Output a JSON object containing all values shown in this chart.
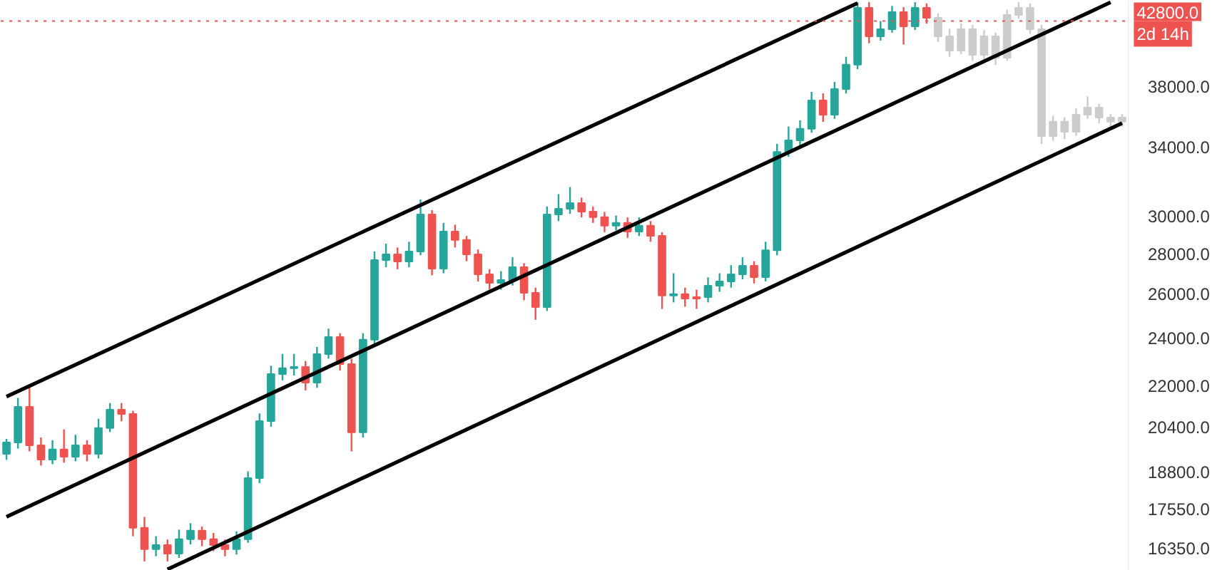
{
  "chart_data": {
    "type": "candlestick",
    "log": true,
    "grid": false,
    "tick_labels": "y",
    "ylim": [
      15680,
      44420
    ],
    "yticks": [
      {
        "value": 16350,
        "label": "16350.0"
      },
      {
        "value": 17550,
        "label": "17550.0"
      },
      {
        "value": 18800,
        "label": "18800.0"
      },
      {
        "value": 20400,
        "label": "20400.0"
      },
      {
        "value": 22000,
        "label": "22000.0"
      },
      {
        "value": 24000,
        "label": "24000.0"
      },
      {
        "value": 26000,
        "label": "26000.0"
      },
      {
        "value": 28000,
        "label": "28000.0"
      },
      {
        "value": 30000,
        "label": "30000.0"
      },
      {
        "value": 34000,
        "label": "34000.0"
      },
      {
        "value": 38000,
        "label": "38000.0"
      }
    ],
    "ref_lines": [
      {
        "axis": "y",
        "value": 42800,
        "label": "42800.0",
        "color": "#ef5350",
        "line_style": "dotted"
      }
    ],
    "annotations": [
      "2d 14h"
    ],
    "categories": [
      null,
      null,
      null,
      null,
      null,
      null,
      null,
      null,
      null,
      null,
      null,
      null,
      null,
      null,
      null,
      null,
      null,
      null,
      null,
      null,
      null,
      null,
      null,
      null,
      null,
      null,
      null,
      null,
      null,
      null,
      null,
      null,
      null,
      null,
      null,
      null,
      null,
      null,
      null,
      null,
      null,
      null,
      null,
      null,
      null,
      null,
      null,
      null,
      null,
      null,
      null,
      null,
      null,
      null,
      null,
      null,
      null,
      null,
      null,
      null,
      null,
      null,
      null,
      null,
      null,
      null,
      null,
      null,
      null,
      null,
      null,
      null,
      null,
      null,
      null,
      null,
      null,
      null,
      null,
      null,
      null,
      null,
      null,
      null,
      null,
      null,
      null,
      null,
      null,
      null,
      null,
      null,
      null,
      null,
      null,
      null,
      null,
      null
    ],
    "ohlc": [
      [
        19410,
        19950,
        19200,
        19820
      ],
      [
        19820,
        21500,
        19600,
        21150
      ],
      [
        21150,
        22000,
        19500,
        19720
      ],
      [
        19720,
        20000,
        19000,
        19210
      ],
      [
        19210,
        19900,
        19050,
        19570
      ],
      [
        19570,
        20300,
        19100,
        19310
      ],
      [
        19310,
        20100,
        19150,
        19720
      ],
      [
        19720,
        19900,
        19150,
        19410
      ],
      [
        19410,
        20700,
        19250,
        20350
      ],
      [
        20350,
        21300,
        20200,
        21040
      ],
      [
        21040,
        21300,
        20600,
        20880
      ],
      [
        20880,
        21000,
        16700,
        16960
      ],
      [
        16960,
        17300,
        15950,
        16310
      ],
      [
        16310,
        16700,
        16100,
        16430
      ],
      [
        16430,
        16600,
        15950,
        16180
      ],
      [
        16180,
        16900,
        16050,
        16610
      ],
      [
        16610,
        17100,
        16450,
        16870
      ],
      [
        16870,
        17000,
        16400,
        16610
      ],
      [
        16610,
        16800,
        16250,
        16430
      ],
      [
        16430,
        16600,
        16100,
        16310
      ],
      [
        16310,
        16850,
        16150,
        16610
      ],
      [
        16610,
        18800,
        16500,
        18570
      ],
      [
        18570,
        20900,
        18400,
        20610
      ],
      [
        20610,
        22800,
        20400,
        22460
      ],
      [
        22460,
        23300,
        22200,
        22700
      ],
      [
        22700,
        23300,
        22400,
        22750
      ],
      [
        22750,
        23000,
        21800,
        22110
      ],
      [
        22110,
        23600,
        21900,
        23290
      ],
      [
        23290,
        24400,
        23100,
        24030
      ],
      [
        24030,
        24200,
        22600,
        22870
      ],
      [
        22870,
        23100,
        19500,
        20190
      ],
      [
        20190,
        24200,
        20000,
        23910
      ],
      [
        23910,
        28100,
        23700,
        27660
      ],
      [
        27660,
        28500,
        27300,
        27950
      ],
      [
        27950,
        28300,
        27200,
        27590
      ],
      [
        27590,
        28600,
        27300,
        28090
      ],
      [
        28090,
        30900,
        27900,
        30060
      ],
      [
        30060,
        30300,
        26900,
        27230
      ],
      [
        27230,
        29600,
        27000,
        29140
      ],
      [
        29140,
        29500,
        28300,
        28690
      ],
      [
        28690,
        28900,
        27600,
        27950
      ],
      [
        27950,
        28200,
        26600,
        26950
      ],
      [
        26950,
        27200,
        26200,
        26530
      ],
      [
        26530,
        27100,
        26200,
        26670
      ],
      [
        26670,
        27800,
        26400,
        27300
      ],
      [
        27300,
        27500,
        25700,
        26050
      ],
      [
        26050,
        26300,
        24800,
        25380
      ],
      [
        25380,
        30500,
        25200,
        30060
      ],
      [
        30060,
        31200,
        29700,
        30370
      ],
      [
        30370,
        31600,
        30100,
        30690
      ],
      [
        30690,
        31000,
        29900,
        30220
      ],
      [
        30220,
        30500,
        29600,
        29910
      ],
      [
        29910,
        30200,
        29100,
        29450
      ],
      [
        29450,
        30000,
        29200,
        29600
      ],
      [
        29600,
        29900,
        28800,
        29140
      ],
      [
        29140,
        29900,
        28900,
        29450
      ],
      [
        29450,
        29700,
        28600,
        28910
      ],
      [
        28910,
        29100,
        25300,
        25920
      ],
      [
        25920,
        27000,
        25600,
        25990
      ],
      [
        25990,
        26300,
        25400,
        25780
      ],
      [
        25780,
        26200,
        25300,
        25850
      ],
      [
        25850,
        26800,
        25600,
        26390
      ],
      [
        26390,
        27000,
        26100,
        26600
      ],
      [
        26600,
        27400,
        26300,
        26950
      ],
      [
        26950,
        27800,
        26700,
        27370
      ],
      [
        27370,
        27600,
        26500,
        26810
      ],
      [
        26810,
        28600,
        26600,
        28160
      ],
      [
        28160,
        34200,
        27900,
        33700
      ],
      [
        33700,
        35300,
        33400,
        34420
      ],
      [
        34420,
        35700,
        34100,
        35150
      ],
      [
        35150,
        37600,
        34900,
        37020
      ],
      [
        37020,
        37500,
        35600,
        36070
      ],
      [
        36070,
        38300,
        35800,
        37800
      ],
      [
        37800,
        40100,
        37500,
        39520
      ],
      [
        39520,
        44300,
        39200,
        43850
      ],
      [
        43850,
        44300,
        41100,
        41620
      ],
      [
        41620,
        42800,
        41300,
        42170
      ],
      [
        42170,
        44000,
        41900,
        43510
      ],
      [
        43510,
        43900,
        41000,
        42390
      ],
      [
        42390,
        44300,
        42100,
        43850
      ],
      [
        43850,
        44200,
        42600,
        43060
      ],
      [
        43060,
        43400,
        41200,
        41620
      ],
      [
        41620,
        42200,
        40100,
        40550
      ],
      [
        40550,
        42600,
        40300,
        42170
      ],
      [
        42170,
        42500,
        39800,
        40240
      ],
      [
        40240,
        42100,
        39900,
        41620
      ],
      [
        41620,
        41900,
        39500,
        40030
      ],
      [
        40030,
        43700,
        39800,
        43280
      ],
      [
        43280,
        44300,
        43000,
        43850
      ],
      [
        43850,
        44200,
        41800,
        42170
      ],
      [
        42170,
        42500,
        34200,
        34690
      ],
      [
        34690,
        36000,
        34400,
        35610
      ],
      [
        35610,
        35900,
        34500,
        34960
      ],
      [
        34960,
        36500,
        34700,
        36070
      ],
      [
        36070,
        37300,
        35800,
        36540
      ],
      [
        36540,
        36800,
        35500,
        35880
      ],
      [
        35880,
        36100,
        35200,
        35610
      ],
      [
        35610,
        36100,
        35300,
        35880
      ]
    ],
    "colors": [
      "#26a69a",
      "#26a69a",
      "#ef5350",
      "#ef5350",
      "#26a69a",
      "#ef5350",
      "#26a69a",
      "#ef5350",
      "#26a69a",
      "#26a69a",
      "#ef5350",
      "#ef5350",
      "#ef5350",
      "#26a69a",
      "#ef5350",
      "#26a69a",
      "#26a69a",
      "#ef5350",
      "#ef5350",
      "#ef5350",
      "#26a69a",
      "#26a69a",
      "#26a69a",
      "#26a69a",
      "#26a69a",
      "#26a69a",
      "#ef5350",
      "#26a69a",
      "#26a69a",
      "#ef5350",
      "#ef5350",
      "#26a69a",
      "#26a69a",
      "#26a69a",
      "#ef5350",
      "#26a69a",
      "#26a69a",
      "#ef5350",
      "#26a69a",
      "#ef5350",
      "#ef5350",
      "#ef5350",
      "#ef5350",
      "#26a69a",
      "#26a69a",
      "#ef5350",
      "#ef5350",
      "#26a69a",
      "#26a69a",
      "#26a69a",
      "#ef5350",
      "#ef5350",
      "#ef5350",
      "#26a69a",
      "#ef5350",
      "#26a69a",
      "#ef5350",
      "#ef5350",
      "#26a69a",
      "#ef5350",
      "#ef5350",
      "#26a69a",
      "#26a69a",
      "#26a69a",
      "#26a69a",
      "#ef5350",
      "#26a69a",
      "#26a69a",
      "#26a69a",
      "#26a69a",
      "#26a69a",
      "#ef5350",
      "#26a69a",
      "#26a69a",
      "#26a69a",
      "#ef5350",
      "#26a69a",
      "#26a69a",
      "#ef5350",
      "#26a69a",
      "#ef5350",
      "#cccccc",
      "#cccccc",
      "#cccccc",
      "#cccccc",
      "#cccccc",
      "#cccccc",
      "#cccccc",
      "#cccccc",
      "#cccccc",
      "#cccccc",
      "#cccccc",
      "#cccccc",
      "#cccccc",
      "#cccccc",
      "#cccccc",
      "#cccccc",
      "#cccccc"
    ],
    "series": [
      {
        "type": "line",
        "color": "#000000",
        "values": [
          21550,
          null,
          null,
          null,
          null,
          null,
          null,
          null,
          null,
          null,
          null,
          null,
          null,
          null,
          null,
          null,
          null,
          null,
          null,
          null,
          null,
          null,
          null,
          null,
          null,
          null,
          null,
          null,
          null,
          null,
          null,
          null,
          null,
          null,
          null,
          null,
          null,
          null,
          null,
          null,
          null,
          null,
          null,
          null,
          null,
          null,
          null,
          null,
          null,
          null,
          null,
          null,
          null,
          null,
          null,
          null,
          null,
          null,
          null,
          null,
          null,
          null,
          null,
          null,
          null,
          null,
          null,
          null,
          null,
          null,
          null,
          null,
          null,
          null,
          44230,
          null,
          null,
          null,
          null,
          null,
          null,
          null,
          null,
          null,
          null,
          null,
          null,
          null,
          null,
          null,
          null,
          null,
          null,
          null,
          null,
          null,
          null,
          null
        ]
      },
      {
        "type": "line",
        "color": "#000000",
        "values": [
          17300,
          null,
          null,
          null,
          null,
          null,
          null,
          null,
          null,
          null,
          null,
          null,
          null,
          null,
          null,
          null,
          null,
          null,
          null,
          null,
          null,
          null,
          null,
          null,
          null,
          null,
          null,
          null,
          null,
          null,
          null,
          null,
          null,
          null,
          null,
          null,
          null,
          null,
          null,
          null,
          null,
          null,
          null,
          null,
          null,
          null,
          null,
          null,
          null,
          null,
          null,
          null,
          null,
          null,
          null,
          null,
          null,
          null,
          null,
          null,
          null,
          null,
          null,
          null,
          null,
          null,
          null,
          null,
          null,
          null,
          null,
          null,
          null,
          null,
          null,
          null,
          null,
          null,
          null,
          null,
          null,
          null,
          null,
          null,
          null,
          null,
          null,
          null,
          null,
          null,
          null,
          null,
          null,
          null,
          null,
          null,
          44290,
          null
        ]
      },
      {
        "type": "line",
        "color": "#000000",
        "values": [
          null,
          null,
          null,
          null,
          null,
          null,
          null,
          null,
          null,
          null,
          null,
          null,
          null,
          null,
          15720,
          null,
          null,
          null,
          null,
          null,
          null,
          null,
          null,
          null,
          null,
          null,
          null,
          null,
          null,
          null,
          null,
          null,
          null,
          null,
          null,
          null,
          null,
          null,
          null,
          null,
          null,
          null,
          null,
          null,
          null,
          null,
          null,
          null,
          null,
          null,
          null,
          null,
          null,
          null,
          null,
          null,
          null,
          null,
          null,
          null,
          null,
          null,
          null,
          null,
          null,
          null,
          null,
          null,
          null,
          null,
          null,
          null,
          null,
          null,
          null,
          null,
          null,
          null,
          null,
          null,
          null,
          null,
          null,
          null,
          null,
          null,
          null,
          null,
          null,
          null,
          null,
          null,
          null,
          null,
          null,
          null,
          null,
          35520
        ]
      }
    ]
  }
}
